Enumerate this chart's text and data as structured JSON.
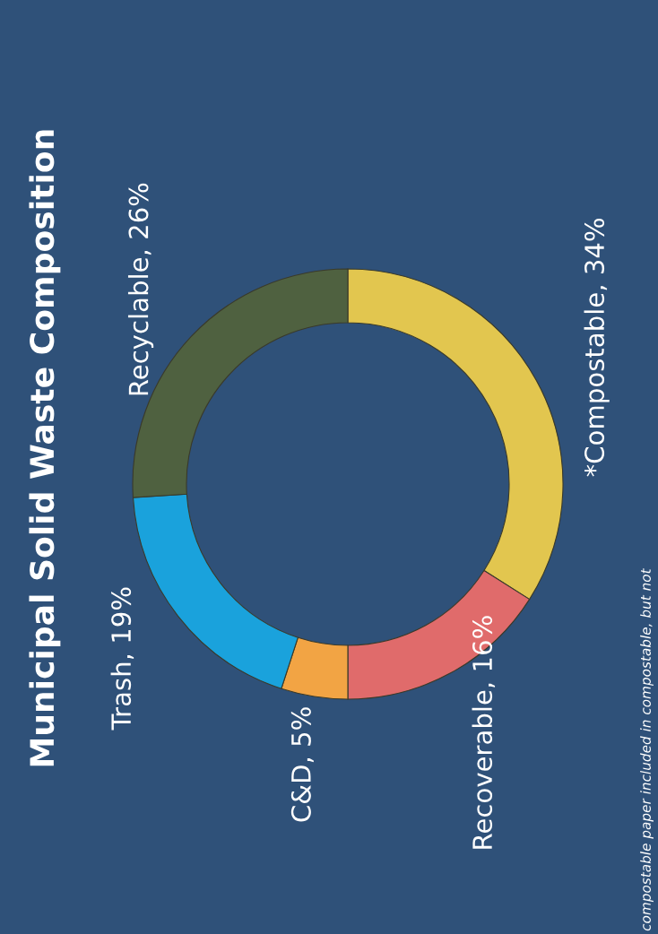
{
  "chart_data": {
    "type": "donut",
    "title": "Municipal Solid Waste Composition",
    "categories": [
      "*Compostable",
      "Recoverable",
      "C&D",
      "Trash",
      "Recyclable"
    ],
    "values": [
      34,
      16,
      5,
      19,
      26
    ],
    "colors": [
      "#e2c64f",
      "#e06b6b",
      "#f2a444",
      "#1aa2dc",
      "#4f6140"
    ],
    "value_labels": [
      "34%",
      "16%",
      "5%",
      "19%",
      "26%"
    ],
    "annotations": [
      "compostable paper included in compostable, but not"
    ]
  }
}
